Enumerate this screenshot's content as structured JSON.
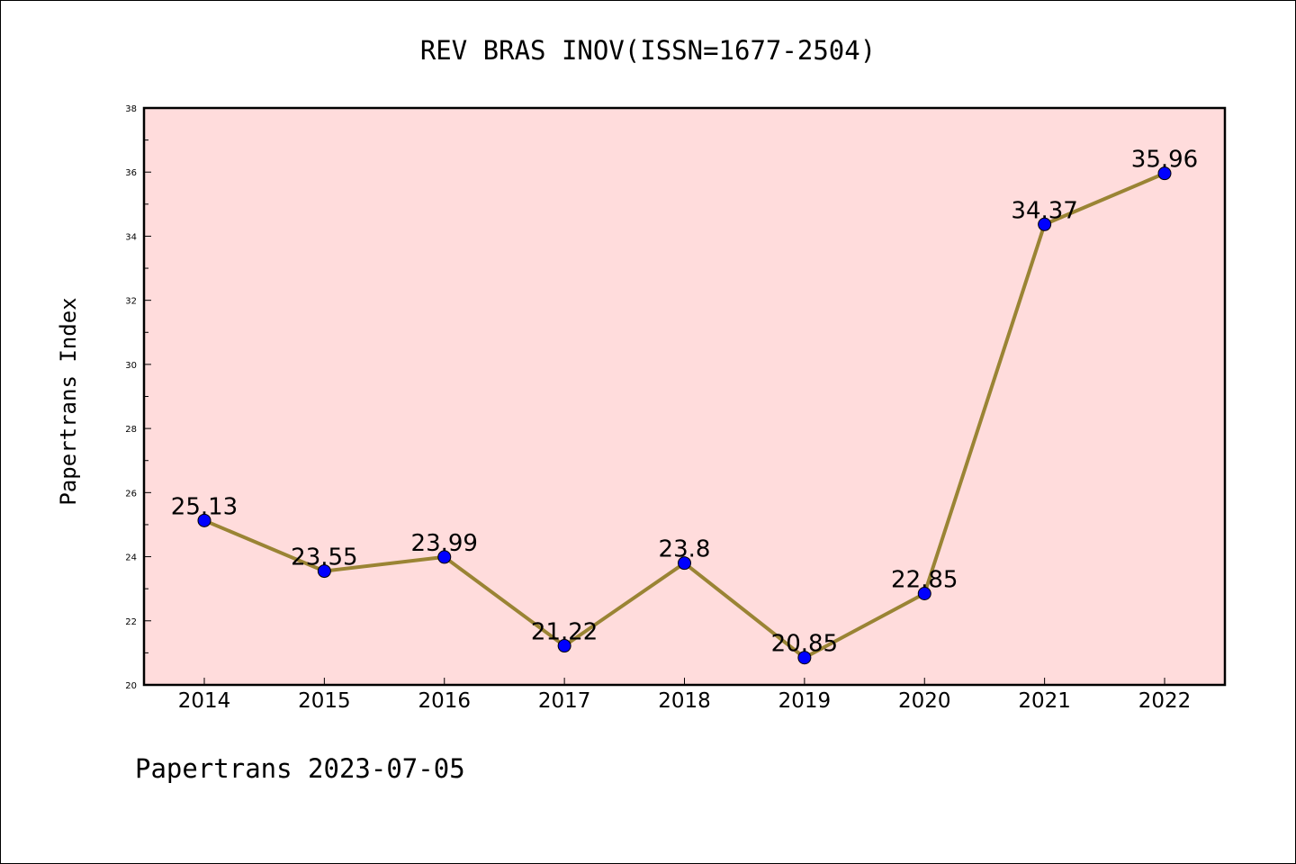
{
  "chart_data": {
    "type": "line",
    "title": "REV BRAS INOV(ISSN=1677-2504)",
    "xlabel": "",
    "ylabel": "Papertrans Index",
    "categories": [
      "2014",
      "2015",
      "2016",
      "2017",
      "2018",
      "2019",
      "2020",
      "2021",
      "2022"
    ],
    "series": [
      {
        "values": [
          25.13,
          23.55,
          23.99,
          21.22,
          23.8,
          20.85,
          22.85,
          34.37,
          35.96
        ],
        "data_labels": [
          "25.13",
          "23.55",
          "23.99",
          "21.22",
          "23.8",
          "20.85",
          "22.85",
          "34.37",
          "35.96"
        ]
      }
    ],
    "ylim": [
      20,
      38
    ],
    "yticks": [
      "20",
      "22",
      "24",
      "26",
      "28",
      "30",
      "32",
      "34",
      "36",
      "38"
    ],
    "grid": false,
    "legend": "none",
    "colors": {
      "plot_background": "#ffdcdc",
      "line": "#9a8434",
      "marker": "#0000ff"
    }
  },
  "footer": {
    "source_stamp": "Papertrans 2023-07-05"
  }
}
